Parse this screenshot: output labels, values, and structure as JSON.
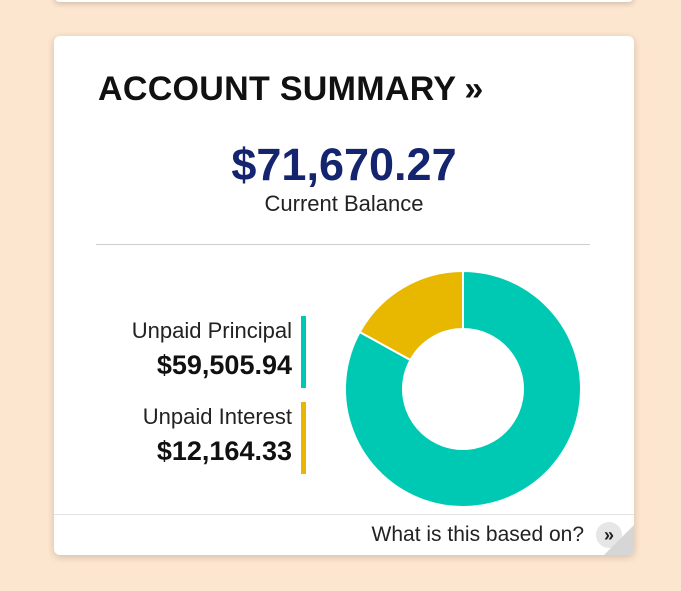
{
  "summary": {
    "title": "ACCOUNT SUMMARY",
    "title_chevron": "»",
    "balance_amount": "$71,670.27",
    "balance_label": "Current Balance",
    "principal_label": "Unpaid Principal",
    "principal_value": "$59,505.94",
    "interest_label": "Unpaid Interest",
    "interest_value": "$12,164.33",
    "footer_link": "What is this based on?",
    "footer_chevron": "»"
  },
  "colors": {
    "principal": "#00c9b3",
    "interest": "#e8b800",
    "balance": "#14246e"
  },
  "chart_data": {
    "type": "pie",
    "variant": "donut",
    "categories": [
      "Unpaid Principal",
      "Unpaid Interest"
    ],
    "values": [
      59505.94,
      12164.33
    ],
    "colors": [
      "#00c9b3",
      "#e8b800"
    ],
    "title": "",
    "legend": "left"
  }
}
